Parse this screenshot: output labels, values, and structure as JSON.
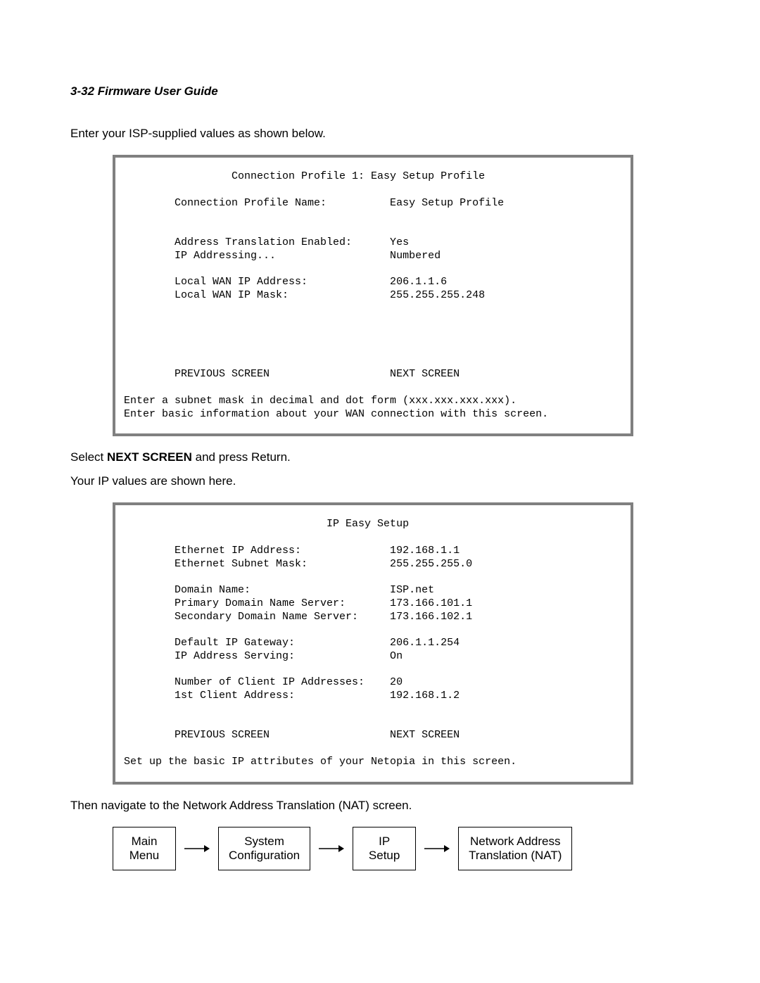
{
  "header": "3-32  Firmware User Guide",
  "intro_text": "Enter your ISP-supplied values as shown below.",
  "terminal1": {
    "title": "Connection Profile 1: Easy Setup Profile",
    "rows": [
      {
        "label": "Connection Profile Name:",
        "value": "Easy Setup Profile"
      },
      {
        "label": "",
        "value": ""
      },
      {
        "label": "",
        "value": ""
      },
      {
        "label": "Address Translation Enabled:",
        "value": "Yes"
      },
      {
        "label": "IP Addressing...",
        "value": "Numbered"
      },
      {
        "label": "",
        "value": ""
      },
      {
        "label": "Local WAN IP Address:",
        "value": "206.1.1.6"
      },
      {
        "label": "Local WAN IP Mask:",
        "value": "255.255.255.248"
      }
    ],
    "nav_prev": "PREVIOUS SCREEN",
    "nav_next": "NEXT SCREEN",
    "footer_lines": [
      "Enter a subnet mask in decimal and dot form (xxx.xxx.xxx.xxx).",
      "Enter basic information about your WAN connection with this screen."
    ],
    "label_col_start": 8,
    "value_col_start": 42,
    "title_indent": 17,
    "blank_after_title": 1,
    "blank_before_nav": 5
  },
  "mid_text_prefix": "Select ",
  "mid_text_bold": "NEXT SCREEN",
  "mid_text_suffix": " and press Return.",
  "mid_text2": "Your IP values are shown here.",
  "terminal2": {
    "title": "IP Easy Setup",
    "rows": [
      {
        "label": "Ethernet IP Address:",
        "value": "192.168.1.1"
      },
      {
        "label": "Ethernet Subnet Mask:",
        "value": "255.255.255.0"
      },
      {
        "label": "",
        "value": ""
      },
      {
        "label": "Domain Name:",
        "value": "ISP.net"
      },
      {
        "label": "Primary Domain Name Server:",
        "value": "173.166.101.1"
      },
      {
        "label": "Secondary Domain Name Server:",
        "value": "173.166.102.1"
      },
      {
        "label": "",
        "value": ""
      },
      {
        "label": "Default IP Gateway:",
        "value": "206.1.1.254"
      },
      {
        "label": "IP Address Serving:",
        "value": "On"
      },
      {
        "label": "",
        "value": ""
      },
      {
        "label": "Number of Client IP Addresses:",
        "value": "20"
      },
      {
        "label": "1st Client Address:",
        "value": "192.168.1.2"
      }
    ],
    "nav_prev": "PREVIOUS SCREEN",
    "nav_next": "NEXT SCREEN",
    "footer_lines": [
      "Set up the basic IP attributes of your Netopia in this screen."
    ],
    "label_col_start": 8,
    "value_col_start": 42,
    "title_indent": 32,
    "blank_after_title": 1,
    "blank_before_nav": 2
  },
  "post_text": "Then navigate to the Network Address Translation (NAT) screen.",
  "nav_flow": {
    "boxes": [
      "Main\nMenu",
      "System\nConfiguration",
      "IP\nSetup",
      "Network Address\nTranslation (NAT)"
    ]
  },
  "colors": {
    "terminal_border": "#808080",
    "text": "#000000",
    "background": "#ffffff"
  }
}
